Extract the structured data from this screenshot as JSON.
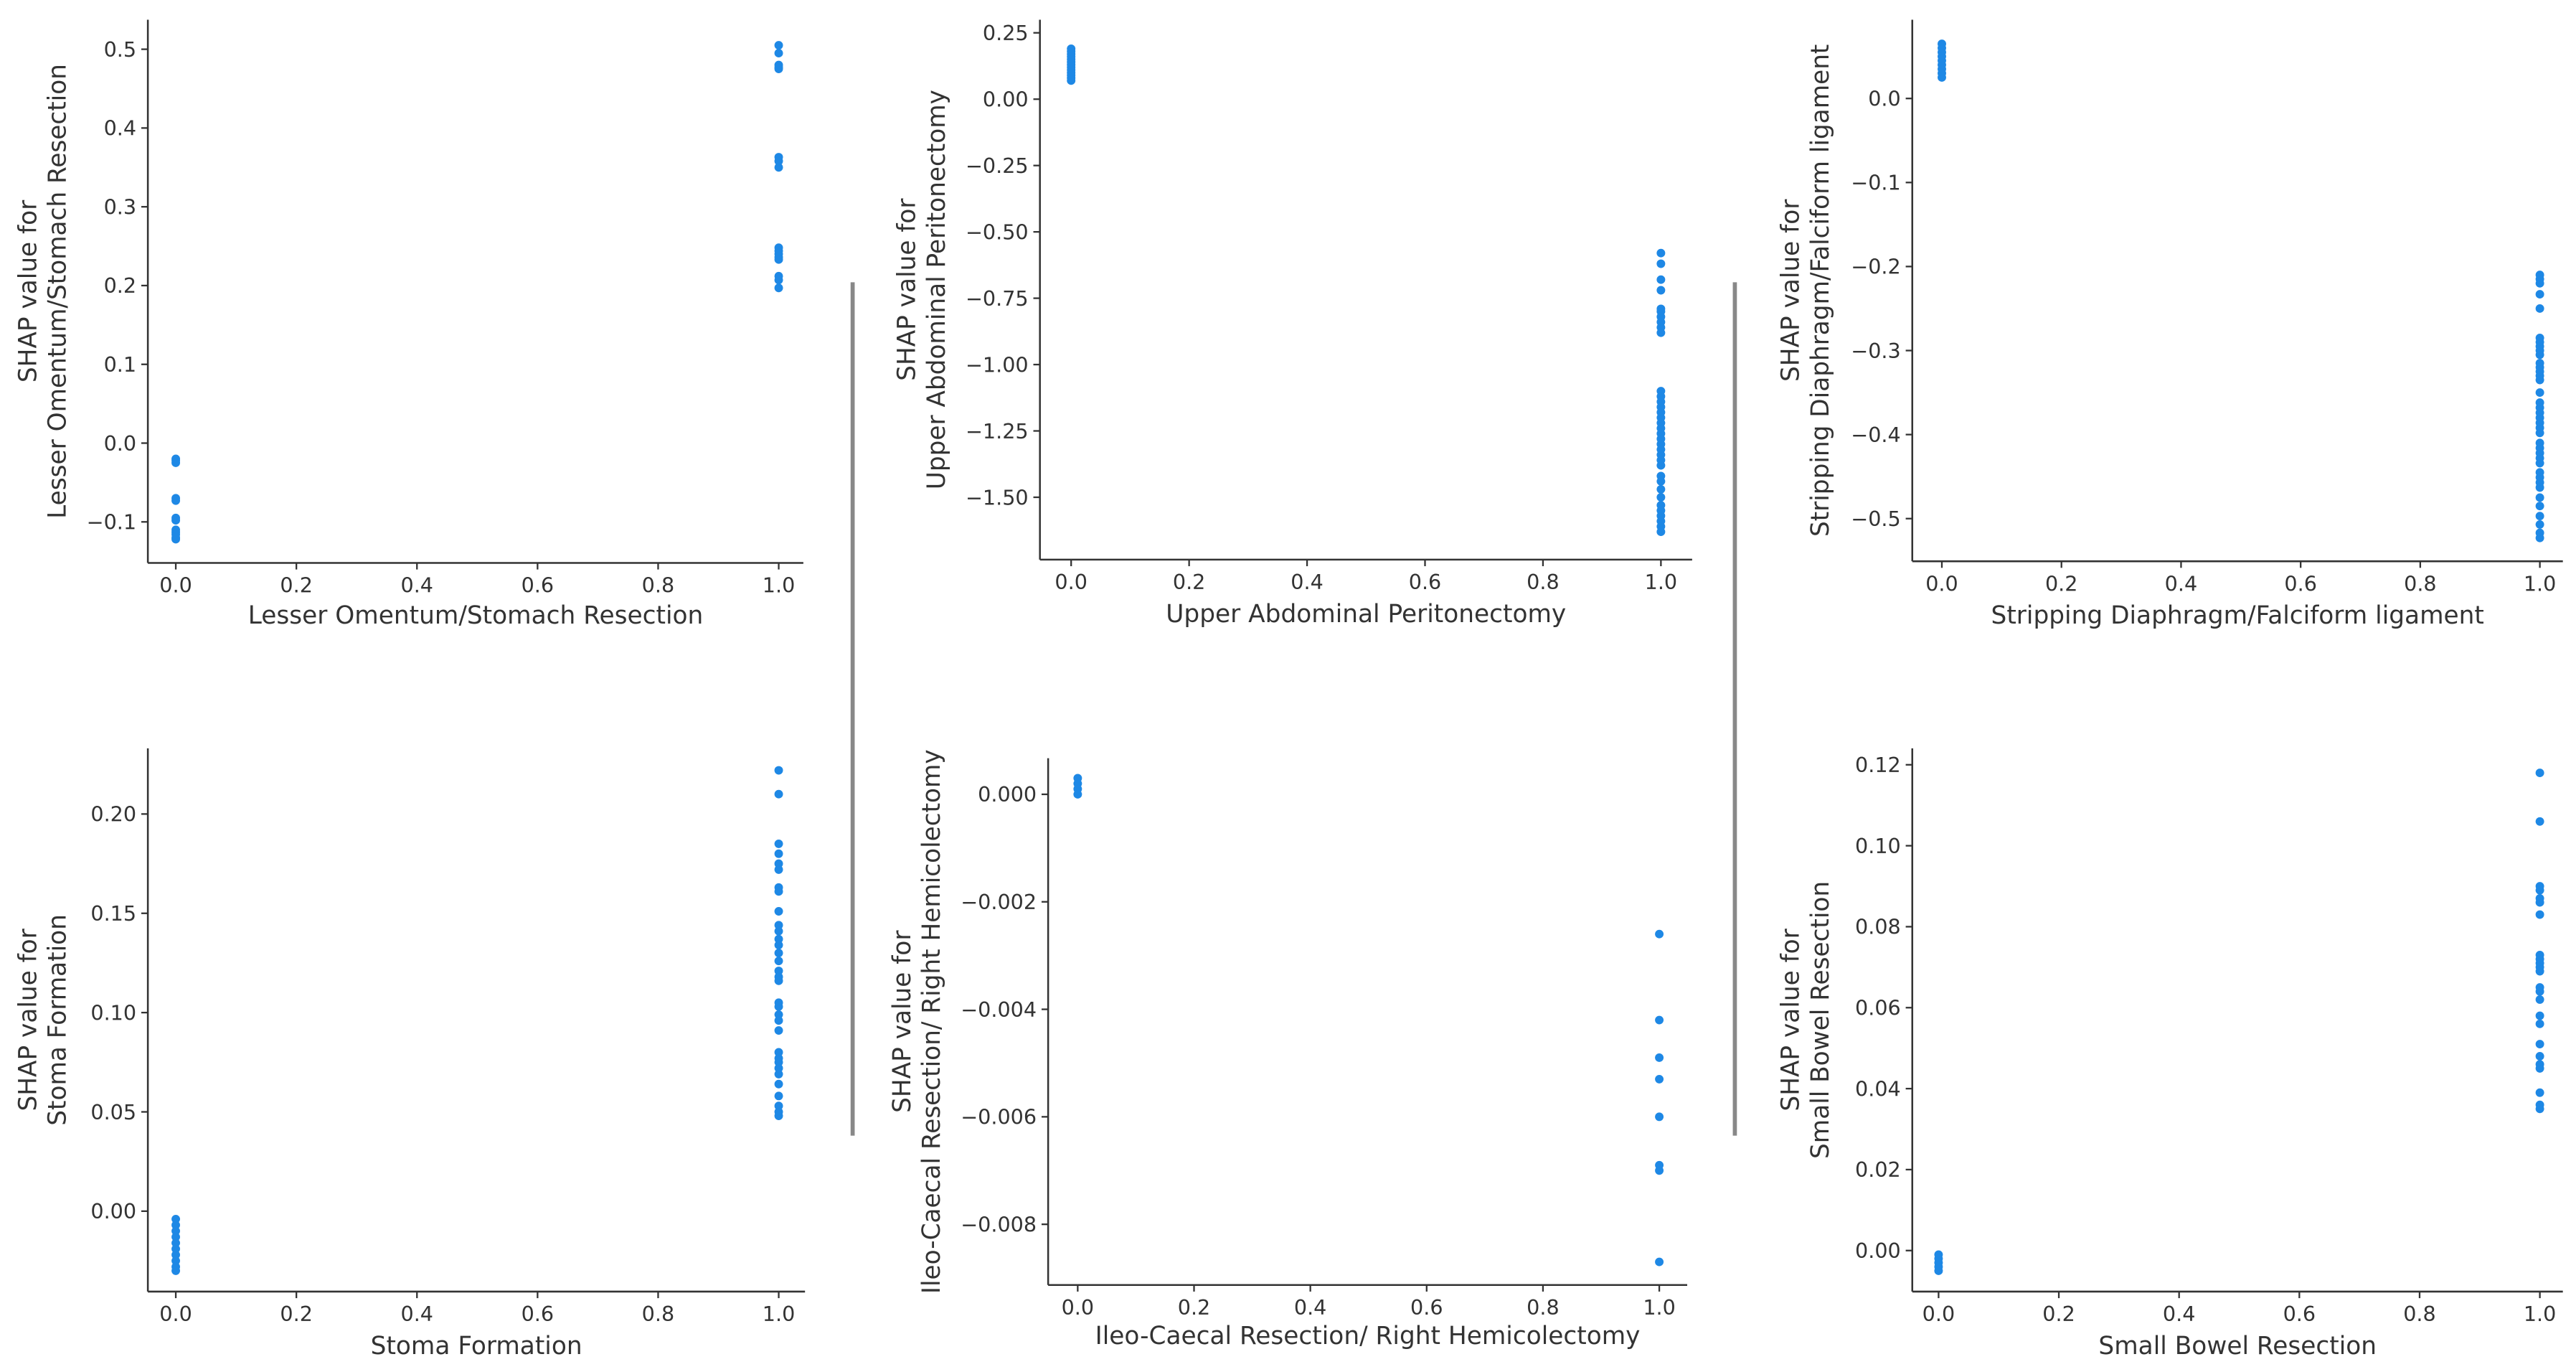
{
  "figure": {
    "dot_color": "#1E88E5",
    "axis_color": "#333333",
    "separator_color": "#888888"
  },
  "chart_data": [
    {
      "type": "scatter",
      "title": "",
      "xlabel": "Lesser Omentum/Stomach Resection",
      "ylabel_line1": "SHAP value for",
      "ylabel_line2": "Lesser Omentum/Stomach Resection",
      "xticks": [
        "0.0",
        "0.2",
        "0.4",
        "0.6",
        "0.8",
        "1.0"
      ],
      "yticks": [
        "0.5",
        "0.4",
        "0.3",
        "0.2",
        "0.1",
        "0.0",
        "−0.1"
      ],
      "ytick_values": [
        0.5,
        0.4,
        0.3,
        0.2,
        0.1,
        0.0,
        -0.1
      ],
      "xlim": [
        -0.05,
        1.05
      ],
      "ylim": [
        -0.15,
        0.54
      ],
      "grid": false,
      "series": [
        {
          "name": "feature=0",
          "x": 0,
          "values": [
            -0.02,
            -0.022,
            -0.025,
            -0.07,
            -0.073,
            -0.095,
            -0.098,
            -0.11,
            -0.113,
            -0.116,
            -0.12,
            -0.122
          ]
        },
        {
          "name": "feature=1",
          "x": 1,
          "values": [
            0.505,
            0.495,
            0.48,
            0.477,
            0.475,
            0.363,
            0.358,
            0.35,
            0.248,
            0.244,
            0.24,
            0.236,
            0.233,
            0.212,
            0.207,
            0.197
          ]
        }
      ]
    },
    {
      "type": "scatter",
      "title": "",
      "xlabel": "Upper Abdominal Peritonectomy",
      "ylabel_line1": "SHAP value for",
      "ylabel_line2": "Upper Abdominal Peritonectomy",
      "xticks": [
        "0.0",
        "0.2",
        "0.4",
        "0.6",
        "0.8",
        "1.0"
      ],
      "yticks": [
        "0.25",
        "0.00",
        "−0.25",
        "−0.50",
        "−0.75",
        "−1.00",
        "−1.25",
        "−1.50"
      ],
      "ytick_values": [
        0.25,
        0.0,
        -0.25,
        -0.5,
        -0.75,
        -1.0,
        -1.25,
        -1.5
      ],
      "xlim": [
        -0.05,
        1.05
      ],
      "ylim": [
        -1.72,
        0.28
      ],
      "grid": false,
      "series": [
        {
          "name": "feature=0",
          "x": 0,
          "values": [
            0.19,
            0.18,
            0.17,
            0.16,
            0.15,
            0.14,
            0.13,
            0.12,
            0.11,
            0.1,
            0.09,
            0.08,
            0.07
          ]
        },
        {
          "name": "feature=1",
          "x": 1,
          "values": [
            -0.58,
            -0.62,
            -0.68,
            -0.72,
            -0.79,
            -0.8,
            -0.82,
            -0.84,
            -0.86,
            -0.88,
            -1.1,
            -1.12,
            -1.14,
            -1.16,
            -1.18,
            -1.2,
            -1.22,
            -1.24,
            -1.26,
            -1.28,
            -1.3,
            -1.32,
            -1.34,
            -1.36,
            -1.38,
            -1.42,
            -1.44,
            -1.47,
            -1.5,
            -1.53,
            -1.55,
            -1.57,
            -1.59,
            -1.61,
            -1.63
          ]
        }
      ]
    },
    {
      "type": "scatter",
      "title": "",
      "xlabel": "Stripping Diaphragm/Falciform ligament",
      "ylabel_line1": "SHAP value for",
      "ylabel_line2": "Stripping Diaphragm/Falciform ligament",
      "xticks": [
        "0.0",
        "0.2",
        "0.4",
        "0.6",
        "0.8",
        "1.0"
      ],
      "yticks": [
        "0.0",
        "−0.1",
        "−0.2",
        "−0.3",
        "−0.4",
        "−0.5"
      ],
      "ytick_values": [
        0.0,
        -0.1,
        -0.2,
        -0.3,
        -0.4,
        -0.5
      ],
      "xlim": [
        -0.05,
        1.05
      ],
      "ylim": [
        -0.555,
        0.095
      ],
      "grid": false,
      "series": [
        {
          "name": "feature=0",
          "x": 0,
          "values": [
            0.065,
            0.06,
            0.055,
            0.05,
            0.045,
            0.04,
            0.035,
            0.03,
            0.025
          ]
        },
        {
          "name": "feature=1",
          "x": 1,
          "values": [
            -0.21,
            -0.215,
            -0.22,
            -0.233,
            -0.25,
            -0.285,
            -0.29,
            -0.295,
            -0.3,
            -0.305,
            -0.315,
            -0.32,
            -0.325,
            -0.33,
            -0.335,
            -0.35,
            -0.362,
            -0.368,
            -0.374,
            -0.38,
            -0.386,
            -0.392,
            -0.398,
            -0.41,
            -0.416,
            -0.422,
            -0.428,
            -0.434,
            -0.445,
            -0.451,
            -0.457,
            -0.463,
            -0.475,
            -0.485,
            -0.497,
            -0.507,
            -0.517,
            -0.523
          ]
        }
      ]
    },
    {
      "type": "scatter",
      "title": "",
      "xlabel": "Stoma Formation",
      "ylabel_line1": "SHAP value for",
      "ylabel_line2": "Stoma Formation",
      "xticks": [
        "0.0",
        "0.2",
        "0.4",
        "0.6",
        "0.8",
        "1.0"
      ],
      "yticks": [
        "0.20",
        "0.15",
        "0.10",
        "0.05",
        "0.00"
      ],
      "ytick_values": [
        0.2,
        0.15,
        0.1,
        0.05,
        0.0
      ],
      "xlim": [
        -0.05,
        1.05
      ],
      "ylim": [
        -0.042,
        0.233
      ],
      "grid": false,
      "series": [
        {
          "name": "feature=0",
          "x": 0,
          "values": [
            -0.004,
            -0.007,
            -0.01,
            -0.013,
            -0.016,
            -0.019,
            -0.022,
            -0.025,
            -0.028,
            -0.03
          ]
        },
        {
          "name": "feature=1",
          "x": 1,
          "values": [
            0.222,
            0.21,
            0.185,
            0.18,
            0.175,
            0.172,
            0.163,
            0.161,
            0.151,
            0.144,
            0.141,
            0.137,
            0.134,
            0.13,
            0.126,
            0.121,
            0.118,
            0.116,
            0.105,
            0.103,
            0.099,
            0.096,
            0.091,
            0.08,
            0.077,
            0.075,
            0.072,
            0.069,
            0.064,
            0.058,
            0.053,
            0.05,
            0.048
          ]
        }
      ]
    },
    {
      "type": "scatter",
      "title": "",
      "xlabel": "Ileo-Caecal Resection/ Right Hemicolectomy",
      "ylabel_line1": "SHAP value for",
      "ylabel_line2": "Ileo-Caecal Resection/ Right Hemicolectomy",
      "xticks": [
        "0.0",
        "0.2",
        "0.4",
        "0.6",
        "0.8",
        "1.0"
      ],
      "yticks": [
        "0.000",
        "−0.002",
        "−0.004",
        "−0.006",
        "−0.008"
      ],
      "ytick_values": [
        0.0,
        -0.002,
        -0.004,
        -0.006,
        -0.008
      ],
      "xlim": [
        -0.05,
        1.05
      ],
      "ylim": [
        -0.0092,
        0.0007
      ],
      "grid": false,
      "series": [
        {
          "name": "feature=0",
          "x": 0,
          "values": [
            0.0003,
            0.0002,
            0.0001,
            0.0
          ]
        },
        {
          "name": "feature=1",
          "x": 1,
          "values": [
            -0.0026,
            -0.0042,
            -0.0049,
            -0.0053,
            -0.006,
            -0.0069,
            -0.007,
            -0.0087
          ]
        }
      ]
    },
    {
      "type": "scatter",
      "title": "",
      "xlabel": "Small Bowel Resection",
      "ylabel_line1": "SHAP value for",
      "ylabel_line2": "Small Bowel Resection",
      "xticks": [
        "0.0",
        "0.2",
        "0.4",
        "0.6",
        "0.8",
        "1.0"
      ],
      "yticks": [
        "0.12",
        "0.10",
        "0.08",
        "0.06",
        "0.04",
        "0.02",
        "0.00"
      ],
      "ytick_values": [
        0.12,
        0.1,
        0.08,
        0.06,
        0.04,
        0.02,
        0.0
      ],
      "xlim": [
        -0.05,
        1.05
      ],
      "ylim": [
        -0.011,
        0.124
      ],
      "grid": false,
      "series": [
        {
          "name": "feature=0",
          "x": 0,
          "values": [
            -0.001,
            -0.002,
            -0.003,
            -0.004,
            -0.005
          ]
        },
        {
          "name": "feature=1",
          "x": 1,
          "values": [
            0.118,
            0.106,
            0.09,
            0.089,
            0.087,
            0.086,
            0.083,
            0.073,
            0.072,
            0.071,
            0.07,
            0.069,
            0.065,
            0.064,
            0.062,
            0.058,
            0.056,
            0.051,
            0.048,
            0.046,
            0.045,
            0.039,
            0.036,
            0.035
          ]
        }
      ]
    }
  ]
}
